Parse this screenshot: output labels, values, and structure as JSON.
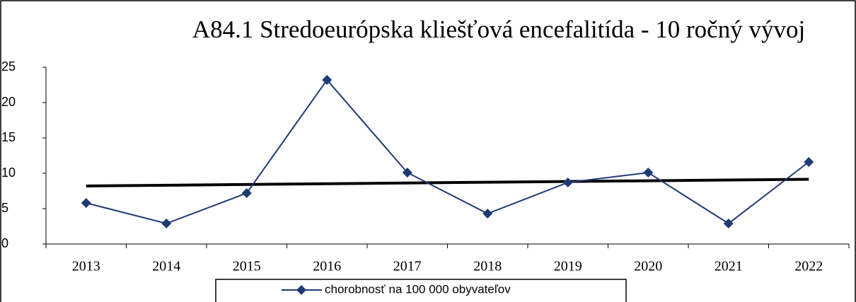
{
  "chart_data": {
    "type": "line",
    "title": "A84.1 Stredoeurópska kliešťová encefalitída - 10 ročný vývoj",
    "categories": [
      "2013",
      "2014",
      "2015",
      "2016",
      "2017",
      "2018",
      "2019",
      "2020",
      "2021",
      "2022"
    ],
    "series": [
      {
        "name": "chorobnosť na 100 000 obyvateľov",
        "color": "#1f3a73",
        "values": [
          5.8,
          2.9,
          7.2,
          23.2,
          10.1,
          4.3,
          8.7,
          10.1,
          2.9,
          11.6
        ]
      }
    ],
    "trendline": true,
    "trendline_color": "#000000",
    "ylim": [
      0,
      25
    ],
    "yticks": [
      0,
      5,
      10,
      15,
      20,
      25
    ],
    "grid": false,
    "legend": "bottom"
  }
}
